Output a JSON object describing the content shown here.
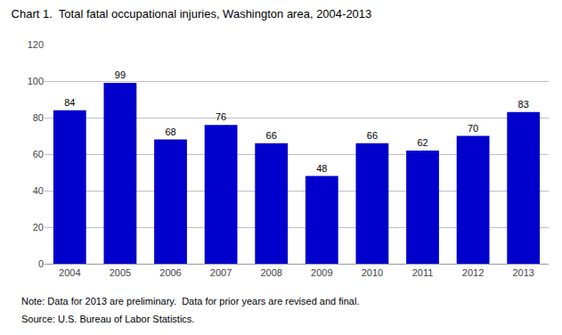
{
  "chart_data": {
    "type": "bar",
    "title": "Chart 1.  Total fatal occupational injuries, Washington area, 2004-2013",
    "categories": [
      "2004",
      "2005",
      "2006",
      "2007",
      "2008",
      "2009",
      "2010",
      "2011",
      "2012",
      "2013"
    ],
    "values": [
      84,
      99,
      68,
      76,
      66,
      48,
      66,
      62,
      70,
      83
    ],
    "color": "#0000CC",
    "ylim": [
      0,
      120
    ],
    "yticks": [
      0,
      20,
      40,
      60,
      80,
      100,
      120
    ],
    "grid": true,
    "data_labels": true,
    "annotations": [
      "Note: Data for 2013 are preliminary.  Data for prior years are revised and final.",
      "Source: U.S. Bureau of Labor Statistics."
    ]
  }
}
